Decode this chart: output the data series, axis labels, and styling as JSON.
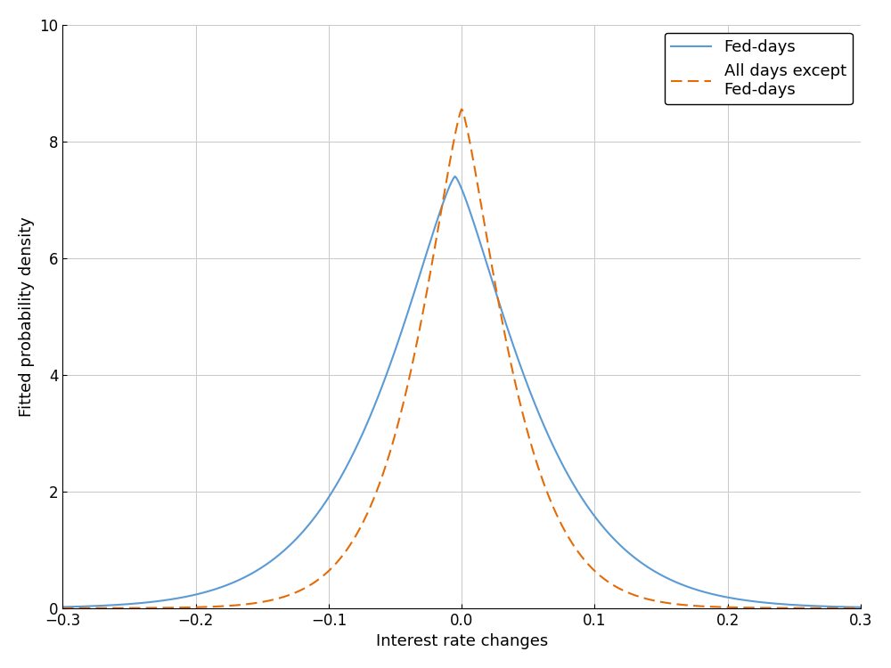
{
  "title": "",
  "xlabel": "Interest rate changes",
  "ylabel": "Fitted probability density",
  "xlim": [
    -0.3,
    0.3
  ],
  "ylim": [
    0,
    10
  ],
  "xticks": [
    -0.3,
    -0.2,
    -0.1,
    0.0,
    0.1,
    0.2,
    0.3
  ],
  "yticks": [
    0,
    2,
    4,
    6,
    8,
    10
  ],
  "fed_days_color": "#5B9BD5",
  "all_days_color": "#E36C09",
  "fed_days_label": "Fed-days",
  "all_days_label": "All days except\nFed-days",
  "fed_days_linestyle": "solid",
  "all_days_linestyle": "dashed",
  "fed_days_mean": -0.005,
  "fed_days_std": 0.075,
  "fed_days_shape": 1.3,
  "all_days_mean": 0.0,
  "all_days_std": 0.048,
  "all_days_shape": 1.3,
  "fed_days_peak": 7.4,
  "all_days_peak": 8.55,
  "background_color": "#ffffff",
  "grid_color": "#c8c8c8",
  "linewidth": 1.5,
  "legend_fontsize": 13,
  "axis_fontsize": 13,
  "tick_fontsize": 12
}
